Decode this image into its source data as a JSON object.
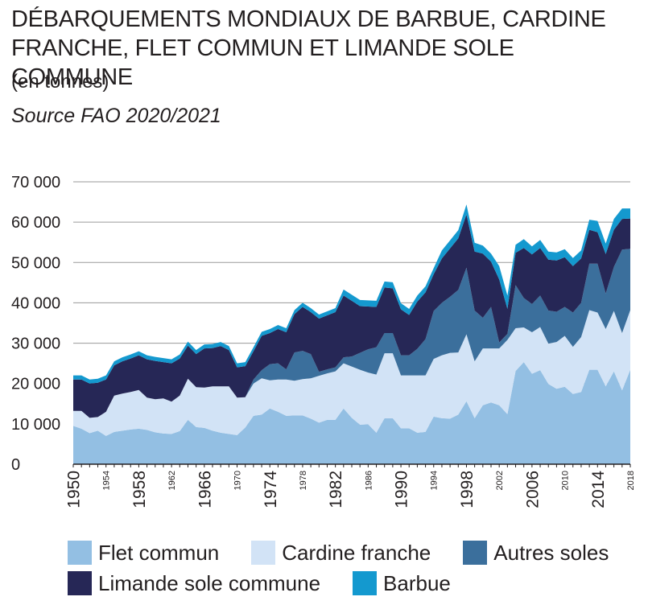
{
  "title": "DÉBARQUEMENTS MONDIAUX DE BARBUE, CARDINE FRANCHE, FLET COMMUN ET LIMANDE SOLE COMMUNE",
  "unit": "(en tonnes)",
  "source": "Source FAO 2020/2021",
  "colors": {
    "flet": "#93bfe3",
    "cardine": "#d2e3f6",
    "autres": "#3b6f9c",
    "limande": "#262756",
    "barbue": "#1499cf"
  },
  "chart_data": {
    "type": "area",
    "stacked": true,
    "x": [
      1950,
      1951,
      1952,
      1953,
      1954,
      1955,
      1956,
      1957,
      1958,
      1959,
      1960,
      1961,
      1962,
      1963,
      1964,
      1965,
      1966,
      1967,
      1968,
      1969,
      1970,
      1971,
      1972,
      1973,
      1974,
      1975,
      1976,
      1977,
      1978,
      1979,
      1980,
      1981,
      1982,
      1983,
      1984,
      1985,
      1986,
      1987,
      1988,
      1989,
      1990,
      1991,
      1992,
      1993,
      1994,
      1995,
      1996,
      1997,
      1998,
      1999,
      2000,
      2001,
      2002,
      2003,
      2004,
      2005,
      2006,
      2007,
      2008,
      2009,
      2010,
      2011,
      2012,
      2013,
      2014,
      2015,
      2016,
      2017,
      2018
    ],
    "y_tick_labels": [
      "0",
      "10 000",
      "20 000",
      "30 000",
      "40 000",
      "50 000",
      "60 000",
      "70 000"
    ],
    "y_ticks": [
      0,
      10000,
      20000,
      30000,
      40000,
      50000,
      60000,
      70000
    ],
    "x_tick_labels": [
      "1950",
      "1954",
      "1958",
      "1962",
      "1966",
      "1970",
      "1974",
      "1978",
      "1982",
      "1986",
      "1990",
      "1994",
      "1998",
      "2002",
      "2006",
      "2010",
      "2014",
      "2018"
    ],
    "x_major_ticks": [
      1950,
      1958,
      1966,
      1974,
      1982,
      1990,
      1998,
      2006,
      2014
    ],
    "x_minor_ticks": [
      1954,
      1962,
      1970,
      1978,
      1986,
      1994,
      2002,
      2010,
      2018
    ],
    "ylim": [
      0,
      70000
    ],
    "xlim": [
      1950,
      2018
    ],
    "grid": true,
    "legend_position": "bottom",
    "series": [
      {
        "name": "Flet commun",
        "color_key": "flet",
        "values": [
          9500,
          8800,
          7700,
          8300,
          7000,
          8000,
          8300,
          8600,
          8800,
          8500,
          7900,
          7600,
          7500,
          8200,
          11000,
          9200,
          9000,
          8300,
          7800,
          7500,
          7200,
          9100,
          12000,
          12300,
          13800,
          13000,
          12000,
          12100,
          12100,
          11300,
          10300,
          11000,
          11000,
          13800,
          11500,
          9800,
          9900,
          7800,
          11400,
          11400,
          8900,
          8900,
          7800,
          8000,
          11800,
          11400,
          11300,
          12300,
          15600,
          11400,
          14600,
          15300,
          14600,
          12400,
          23100,
          25300,
          22400,
          23300,
          19900,
          18700,
          19200,
          17400,
          17900,
          23400,
          23400,
          19300,
          23000,
          18300,
          23400
        ]
      },
      {
        "name": "Cardine franche",
        "color_key": "cardine",
        "values": [
          3700,
          4400,
          3800,
          3400,
          6000,
          9000,
          9200,
          9300,
          9600,
          8000,
          8200,
          8700,
          8000,
          8800,
          10200,
          9900,
          10000,
          11000,
          11500,
          11800,
          9300,
          7500,
          8000,
          9000,
          7000,
          8000,
          9000,
          8600,
          9000,
          10000,
          11600,
          11500,
          12000,
          11200,
          12700,
          13600,
          12800,
          14400,
          16100,
          16100,
          13100,
          13100,
          14200,
          14000,
          14300,
          15600,
          16300,
          15400,
          16600,
          14100,
          14100,
          13400,
          14100,
          18400,
          10600,
          8600,
          10300,
          10700,
          10000,
          11600,
          12600,
          11700,
          13600,
          14800,
          14200,
          14200,
          15000,
          14200,
          14800
        ]
      },
      {
        "name": "Autres soles",
        "color_key": "autres",
        "values": [
          0,
          0,
          0,
          0,
          0,
          0,
          0,
          0,
          0,
          0,
          0,
          0,
          0,
          0,
          0,
          0,
          0,
          0,
          0,
          0,
          0,
          0,
          1000,
          2000,
          4000,
          4000,
          2500,
          7000,
          7000,
          6000,
          1000,
          1000,
          1000,
          1500,
          2500,
          4200,
          5800,
          6800,
          5000,
          5000,
          5000,
          5000,
          6600,
          9000,
          11900,
          13000,
          13900,
          15500,
          16500,
          12600,
          7600,
          10300,
          1500,
          1500,
          10700,
          7300,
          7000,
          7800,
          8200,
          7500,
          7200,
          8500,
          8500,
          11500,
          12100,
          8800,
          10900,
          20700,
          15200
        ]
      },
      {
        "name": "Limande sole commune",
        "color_key": "limande",
        "values": [
          7800,
          7800,
          8500,
          8500,
          8000,
          7500,
          8000,
          8300,
          8600,
          9500,
          9500,
          9000,
          9500,
          9200,
          8200,
          8200,
          9700,
          9500,
          10000,
          9000,
          7500,
          7700,
          7000,
          8500,
          7700,
          8500,
          9200,
          9500,
          10900,
          10400,
          13200,
          13400,
          13700,
          15300,
          13800,
          11600,
          10600,
          10000,
          11300,
          11100,
          11400,
          10000,
          11700,
          11600,
          9100,
          11000,
          12000,
          12800,
          13200,
          14600,
          15900,
          11200,
          15600,
          6200,
          8000,
          12400,
          12300,
          11800,
          12600,
          12700,
          12300,
          11500,
          11000,
          8400,
          7800,
          9800,
          9200,
          7600,
          7500
        ]
      },
      {
        "name": "Barbue",
        "color_key": "barbue",
        "values": [
          1000,
          1000,
          1000,
          1000,
          1000,
          1000,
          1000,
          1000,
          1000,
          1000,
          1000,
          1000,
          1000,
          1000,
          1000,
          1000,
          1000,
          1000,
          1000,
          1000,
          1000,
          1000,
          1000,
          1000,
          1000,
          1000,
          1000,
          1000,
          1000,
          1000,
          1000,
          1000,
          1000,
          1500,
          1500,
          1500,
          1500,
          1500,
          1500,
          1500,
          1500,
          1500,
          1500,
          1500,
          1500,
          2000,
          2000,
          2000,
          2500,
          2200,
          2000,
          2000,
          3300,
          3300,
          2000,
          2200,
          2000,
          2000,
          2000,
          2000,
          2000,
          2000,
          2000,
          2500,
          2800,
          2600,
          2700,
          2600,
          2500
        ]
      }
    ]
  },
  "legend": [
    {
      "label": "Flet commun",
      "color_key": "flet"
    },
    {
      "label": "Cardine franche",
      "color_key": "cardine"
    },
    {
      "label": "Autres soles",
      "color_key": "autres"
    },
    {
      "label": "Limande sole commune",
      "color_key": "limande"
    },
    {
      "label": "Barbue",
      "color_key": "barbue"
    }
  ]
}
